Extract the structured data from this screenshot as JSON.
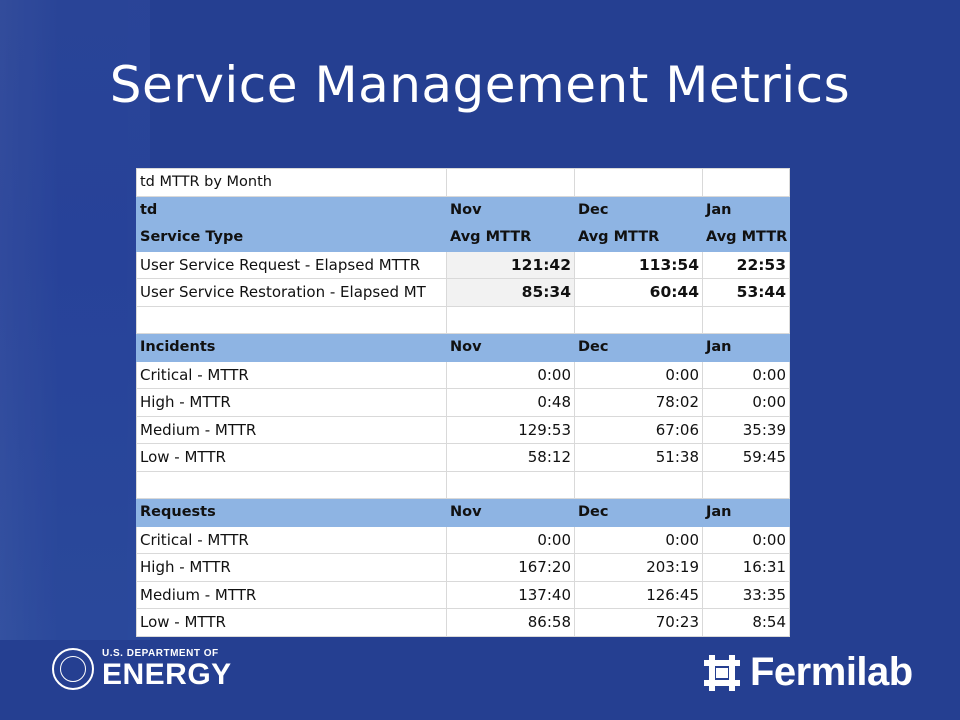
{
  "slide": {
    "title": "Service Management Metrics"
  },
  "table": {
    "caption": "td MTTR by Month",
    "summary": {
      "header1": [
        "td",
        "Nov",
        "Dec",
        "Jan"
      ],
      "header2": [
        "Service Type",
        "Avg MTTR",
        "Avg MTTR",
        "Avg MTTR"
      ],
      "rows": [
        [
          "User Service Request - Elapsed MTTR",
          "121:42",
          "113:54",
          "22:53"
        ],
        [
          "User Service Restoration - Elapsed MT",
          "85:34",
          "60:44",
          "53:44"
        ]
      ]
    },
    "incidents": {
      "header": [
        "Incidents",
        "Nov",
        "Dec",
        "Jan"
      ],
      "rows": [
        [
          "Critical - MTTR",
          "0:00",
          "0:00",
          "0:00"
        ],
        [
          "High - MTTR",
          "0:48",
          "78:02",
          "0:00"
        ],
        [
          "Medium - MTTR",
          "129:53",
          "67:06",
          "35:39"
        ],
        [
          "Low - MTTR",
          "58:12",
          "51:38",
          "59:45"
        ]
      ]
    },
    "requests": {
      "header": [
        "Requests",
        "Nov",
        "Dec",
        "Jan"
      ],
      "rows": [
        [
          "Critical - MTTR",
          "0:00",
          "0:00",
          "0:00"
        ],
        [
          "High - MTTR",
          "167:20",
          "203:19",
          "16:31"
        ],
        [
          "Medium - MTTR",
          "137:40",
          "126:45",
          "33:35"
        ],
        [
          "Low - MTTR",
          "86:58",
          "70:23",
          "8:54"
        ]
      ]
    }
  },
  "footer": {
    "doe_small": "U.S. DEPARTMENT OF",
    "doe_big": "ENERGY",
    "fermilab": "Fermilab"
  },
  "colors": {
    "background": "#253f91",
    "header_fill": "#8eb4e3"
  }
}
